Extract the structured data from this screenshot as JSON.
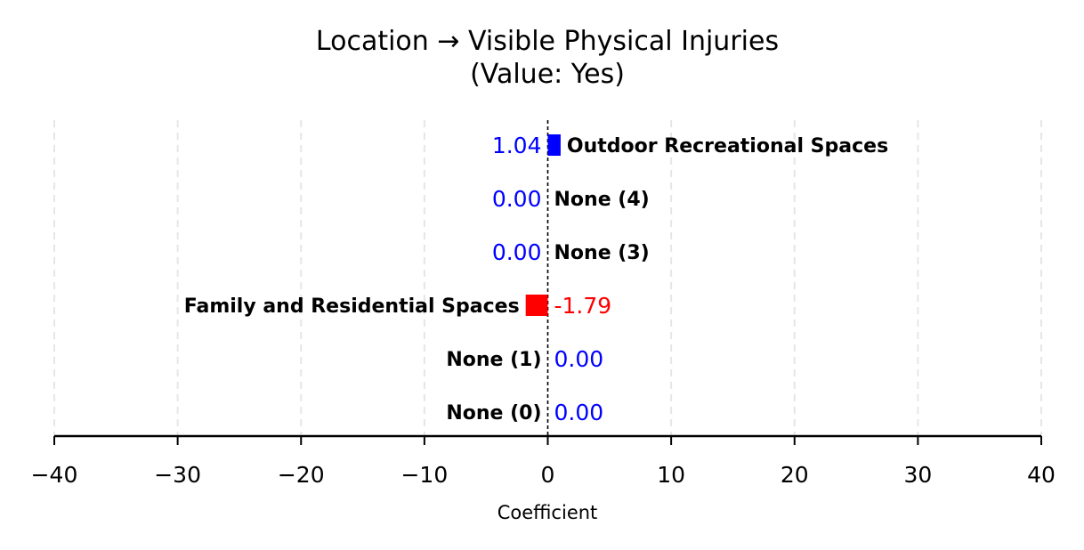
{
  "chart_data": {
    "type": "bar",
    "orientation": "horizontal",
    "title_line1": "Location → Visible Physical Injuries",
    "title_line2": "(Value: Yes)",
    "xlabel": "Coefficient",
    "xlim": [
      -40,
      40
    ],
    "xticks": [
      -40,
      -30,
      -20,
      -10,
      0,
      10,
      20,
      30,
      40
    ],
    "xtick_labels": [
      "−40",
      "−30",
      "−20",
      "−10",
      "0",
      "10",
      "20",
      "30",
      "40"
    ],
    "grid": "vertical dashed",
    "zero_line": "dashed",
    "categories": [
      "Outdoor Recreational Spaces",
      "None (4)",
      "None (3)",
      "Family and Residential Spaces",
      "None (1)",
      "None (0)"
    ],
    "values": [
      1.04,
      0.0,
      0.0,
      -1.79,
      0.0,
      0.0
    ],
    "value_labels": [
      "1.04",
      "0.00",
      "0.00",
      "-1.79",
      "0.00",
      "0.00"
    ],
    "colors": {
      "positive": "#0000ff",
      "negative": "#ff0000",
      "grid": "#e6e6e6",
      "axis": "#000000"
    }
  }
}
